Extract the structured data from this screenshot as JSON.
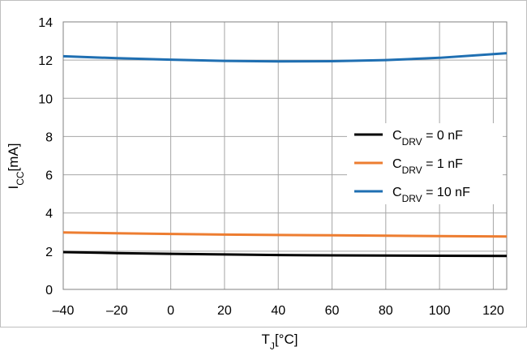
{
  "chart_data": {
    "type": "line",
    "x_label": {
      "main": "T",
      "sub": "J",
      "unit": "[°C]"
    },
    "y_label": {
      "main": "I",
      "sub": "CC",
      "unit": "[mA]"
    },
    "xlim": [
      -40,
      125
    ],
    "ylim": [
      0,
      14
    ],
    "x_ticks": [
      -40,
      -20,
      0,
      20,
      40,
      60,
      80,
      100,
      120
    ],
    "x_tick_labels": [
      "–40",
      "–20",
      "0",
      "20",
      "40",
      "60",
      "80",
      "100",
      "120"
    ],
    "y_ticks": [
      0,
      2,
      4,
      6,
      8,
      10,
      12,
      14
    ],
    "y_tick_labels": [
      "0",
      "2",
      "4",
      "6",
      "8",
      "10",
      "12",
      "14"
    ],
    "grid": true,
    "legend_position": "right",
    "series": [
      {
        "name": {
          "main": "C",
          "sub": "DRV",
          "rest": " = 0 nF"
        },
        "color": "#000000",
        "x": [
          -40,
          -20,
          0,
          20,
          40,
          60,
          80,
          100,
          125
        ],
        "y": [
          1.95,
          1.9,
          1.86,
          1.83,
          1.8,
          1.78,
          1.77,
          1.76,
          1.75
        ]
      },
      {
        "name": {
          "main": "C",
          "sub": "DRV",
          "rest": " = 1 nF"
        },
        "color": "#ed7d31",
        "x": [
          -40,
          -20,
          0,
          20,
          40,
          60,
          80,
          100,
          125
        ],
        "y": [
          2.98,
          2.94,
          2.9,
          2.87,
          2.85,
          2.83,
          2.81,
          2.79,
          2.77
        ]
      },
      {
        "name": {
          "main": "C",
          "sub": "DRV",
          "rest": " = 10 nF"
        },
        "color": "#1f6fb2",
        "x": [
          -40,
          -20,
          0,
          20,
          40,
          60,
          80,
          100,
          125
        ],
        "y": [
          12.2,
          12.1,
          12.02,
          11.96,
          11.93,
          11.94,
          12.0,
          12.12,
          12.36
        ]
      }
    ]
  }
}
